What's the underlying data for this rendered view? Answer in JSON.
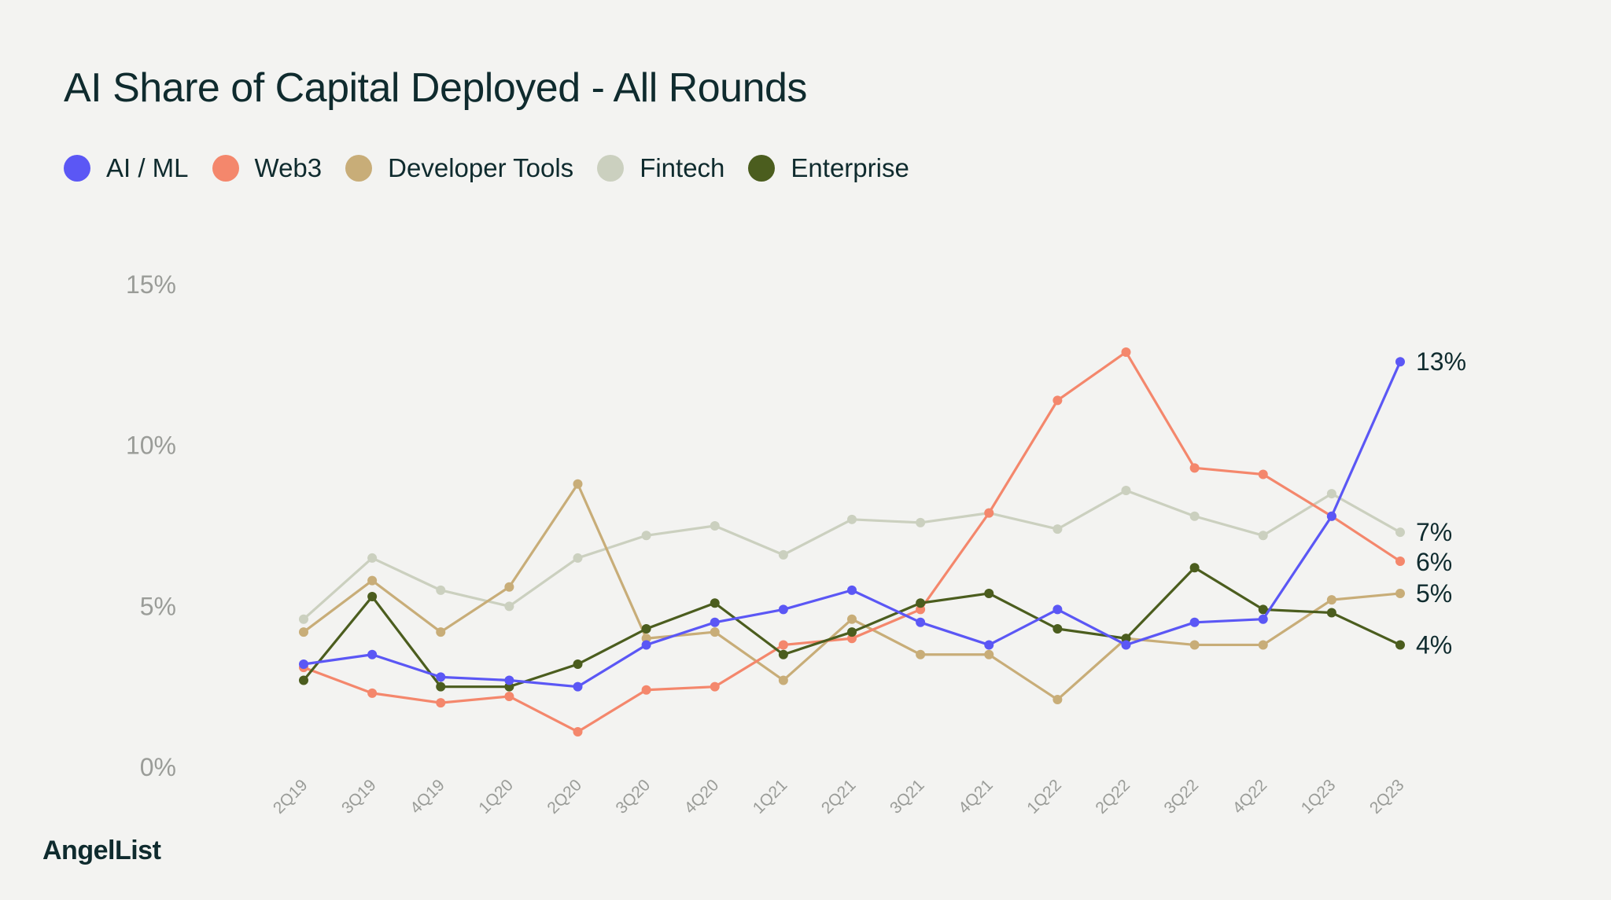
{
  "chart_data": {
    "type": "line",
    "title": "AI Share of Capital Deployed - All Rounds",
    "xlabel": "",
    "ylabel": "",
    "ylim": [
      0,
      15
    ],
    "yticks": [
      "0%",
      "5%",
      "10%",
      "15%"
    ],
    "grid": false,
    "legend_position": "top-left",
    "categories": [
      "2Q19",
      "3Q19",
      "4Q19",
      "1Q20",
      "2Q20",
      "3Q20",
      "4Q20",
      "1Q21",
      "2Q21",
      "3Q21",
      "4Q21",
      "1Q22",
      "2Q22",
      "3Q22",
      "4Q22",
      "1Q23",
      "2Q23"
    ],
    "series": [
      {
        "name": "AI / ML",
        "color": "#5b57f5",
        "end_label": "13%",
        "values": [
          3.2,
          3.5,
          2.8,
          2.7,
          2.5,
          3.8,
          4.5,
          4.9,
          5.5,
          4.5,
          3.8,
          4.9,
          3.8,
          4.5,
          4.6,
          7.8,
          12.6
        ]
      },
      {
        "name": "Web3",
        "color": "#f4876c",
        "end_label": "6%",
        "values": [
          3.1,
          2.3,
          2.0,
          2.2,
          1.1,
          2.4,
          2.5,
          3.8,
          4.0,
          4.9,
          7.9,
          11.4,
          12.9,
          9.3,
          9.1,
          7.8,
          6.4
        ]
      },
      {
        "name": "Developer Tools",
        "color": "#c8ad78",
        "end_label": "5%",
        "values": [
          4.2,
          5.8,
          4.2,
          5.6,
          8.8,
          4.0,
          4.2,
          2.7,
          4.6,
          3.5,
          3.5,
          2.1,
          4.0,
          3.8,
          3.8,
          5.2,
          5.4
        ]
      },
      {
        "name": "Fintech",
        "color": "#cbd0bf",
        "end_label": "7%",
        "values": [
          4.6,
          6.5,
          5.5,
          5.0,
          6.5,
          7.2,
          7.5,
          6.6,
          7.7,
          7.6,
          7.9,
          7.4,
          8.6,
          7.8,
          7.2,
          8.5,
          7.3
        ]
      },
      {
        "name": "Enterprise",
        "color": "#4b5d1e",
        "end_label": "4%",
        "values": [
          2.7,
          5.3,
          2.5,
          2.5,
          3.2,
          4.3,
          5.1,
          3.5,
          4.2,
          5.1,
          5.4,
          4.3,
          4.0,
          6.2,
          4.9,
          4.8,
          3.8
        ]
      }
    ]
  },
  "brand": "AngelList"
}
